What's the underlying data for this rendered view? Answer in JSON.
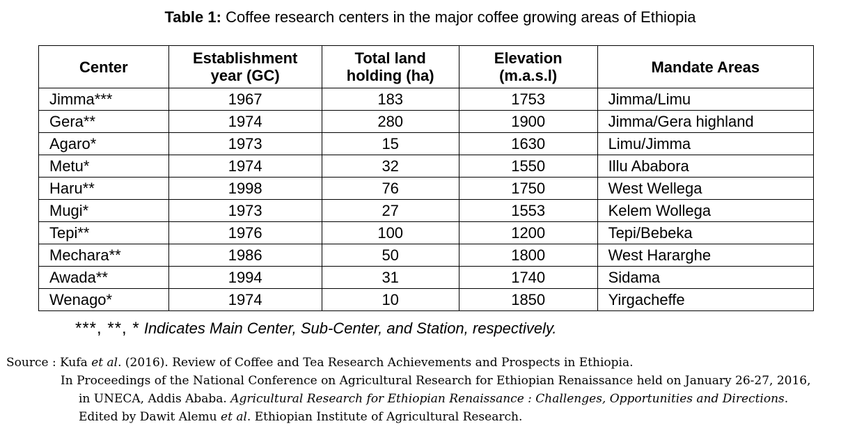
{
  "title": {
    "prefix": "Table 1:",
    "text": " Coffee research centers in the major coffee growing areas of Ethiopia"
  },
  "table": {
    "headers": {
      "center": "Center",
      "year_line1": "Establishment",
      "year_line2": "year (GC)",
      "land_line1": "Total land",
      "land_line2": "holding (ha)",
      "elev_line1": "Elevation",
      "elev_line2": "(m.a.s.l)",
      "mandate": "Mandate Areas"
    },
    "rows": [
      {
        "center": "Jimma***",
        "year": "1967",
        "land": "183",
        "elevation": "1753",
        "mandate": "Jimma/Limu"
      },
      {
        "center": "Gera**",
        "year": "1974",
        "land": "280",
        "elevation": "1900",
        "mandate": "Jimma/Gera highland"
      },
      {
        "center": "Agaro*",
        "year": "1973",
        "land": "15",
        "elevation": "1630",
        "mandate": "Limu/Jimma"
      },
      {
        "center": "Metu*",
        "year": "1974",
        "land": "32",
        "elevation": "1550",
        "mandate": "Illu Ababora"
      },
      {
        "center": "Haru**",
        "year": "1998",
        "land": "76",
        "elevation": "1750",
        "mandate": "West Wellega"
      },
      {
        "center": "Mugi*",
        "year": "1973",
        "land": "27",
        "elevation": "1553",
        "mandate": "Kelem Wollega"
      },
      {
        "center": "Tepi**",
        "year": "1976",
        "land": "100",
        "elevation": "1200",
        "mandate": "Tepi/Bebeka"
      },
      {
        "center": "Mechara**",
        "year": "1986",
        "land": "50",
        "elevation": "1800",
        "mandate": "West Hararghe"
      },
      {
        "center": "Awada**",
        "year": "1994",
        "land": "31",
        "elevation": "1740",
        "mandate": "Sidama"
      },
      {
        "center": "Wenago*",
        "year": "1974",
        "land": "10",
        "elevation": "1850",
        "mandate": "Yirgacheffe"
      }
    ]
  },
  "note": {
    "stars": "***, **, *",
    "text": " Indicates Main Center, Sub-Center, and Station, respectively."
  },
  "source": {
    "line1_a": "Source : Kufa ",
    "line1_it": "et al",
    "line1_b": ". (2016). Review of Coffee and Tea Research Achievements and Prospects in Ethiopia.",
    "line2": "In Proceedings of the National Conference on Agricultural Research for Ethiopian Renaissance held on January 26-27, 2016,",
    "line3_a": "in UNECA, Addis Ababa. ",
    "line3_it": "Agricultural Research for Ethiopian Renaissance : Challenges, Opportunities and Directions",
    "line3_b": ".",
    "line4_a": "Edited by Dawit Alemu ",
    "line4_it": "et al",
    "line4_b": ". Ethiopian Institute of Agricultural Research."
  }
}
